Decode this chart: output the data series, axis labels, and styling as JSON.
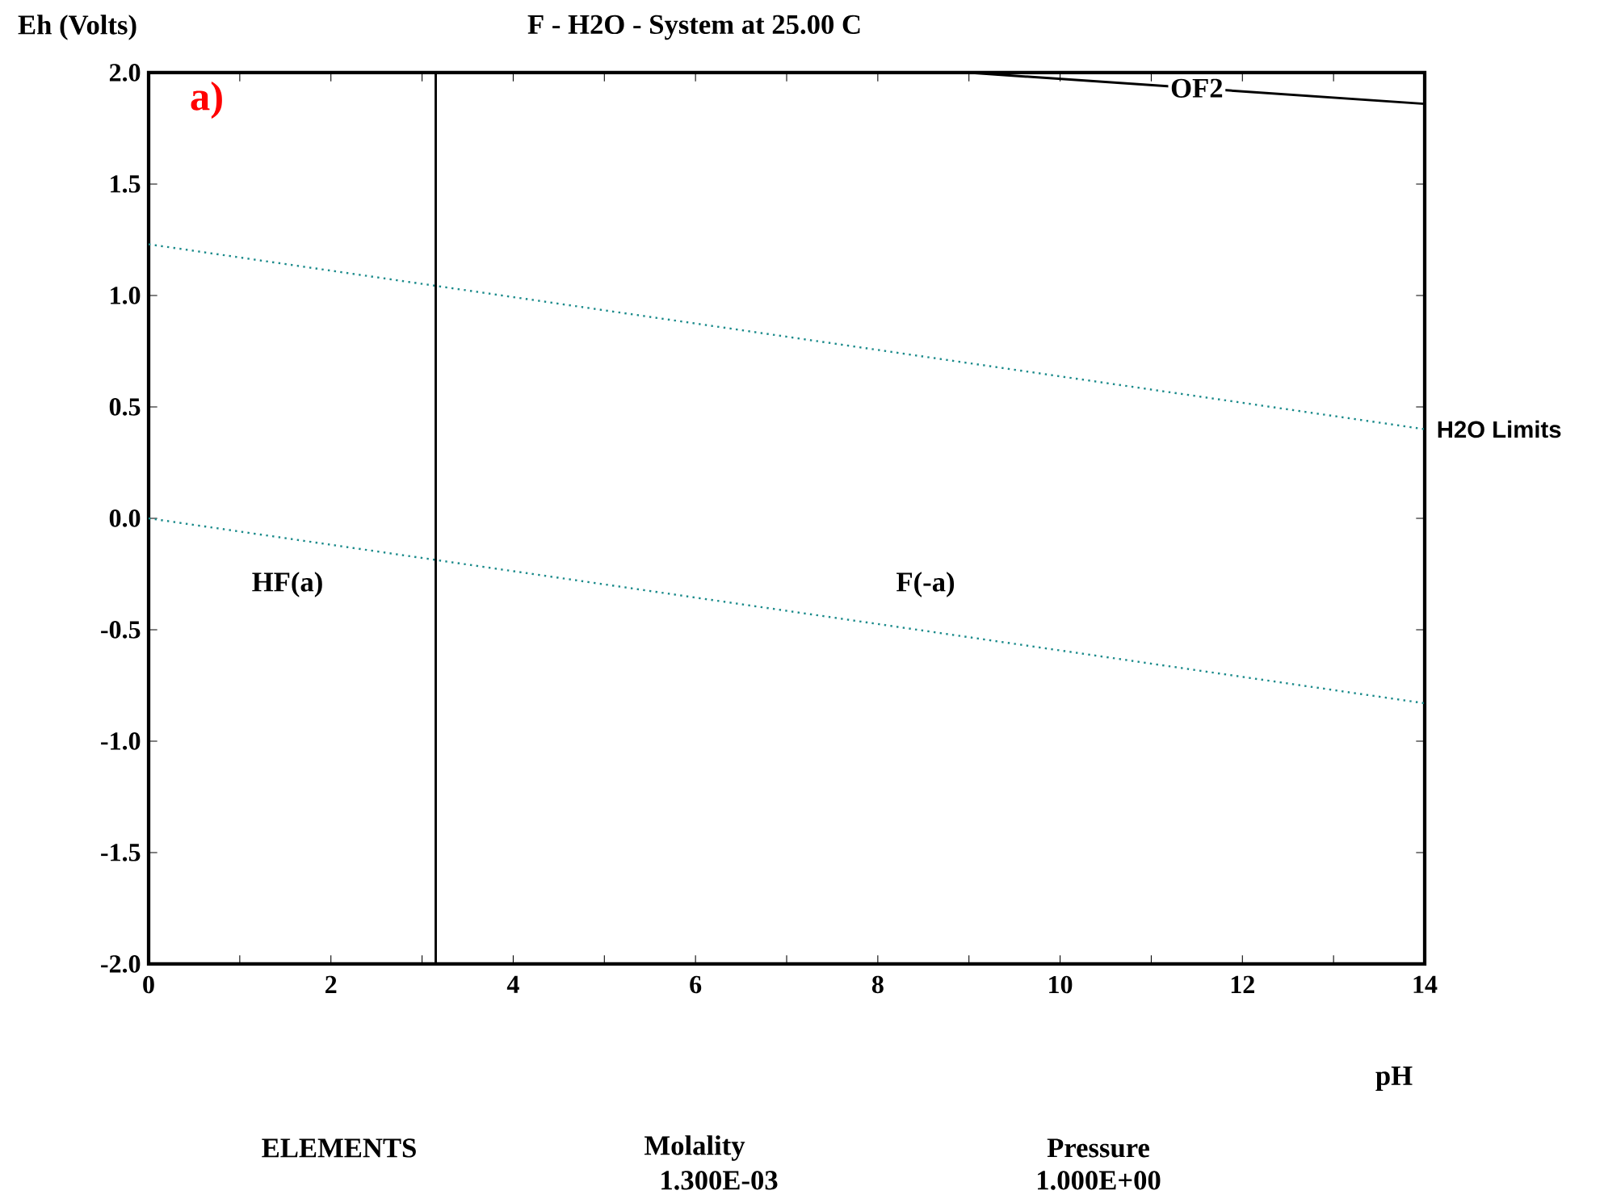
{
  "chart_data": {
    "type": "line",
    "title": "F - H2O - System at 25.00 C",
    "xlabel": "pH",
    "ylabel": "Eh (Volts)",
    "xlim": [
      0,
      14
    ],
    "ylim": [
      -2,
      2
    ],
    "xticks": [
      0,
      {
        "value": 1,
        "label": null
      },
      2,
      {
        "value": 3,
        "label": null
      },
      4,
      {
        "value": 5,
        "label": null
      },
      6,
      {
        "value": 7,
        "label": null
      },
      8,
      {
        "value": 9,
        "label": null
      },
      10,
      {
        "value": 11,
        "label": null
      },
      12,
      {
        "value": 13,
        "label": null
      },
      14
    ],
    "yticks": [
      {
        "value": -2,
        "label": "-2.0"
      },
      {
        "value": -1.5,
        "label": "-1.5"
      },
      {
        "value": -1,
        "label": "-1.0"
      },
      {
        "value": -0.5,
        "label": "-0.5"
      },
      {
        "value": 0,
        "label": "0.0"
      },
      {
        "value": 0.5,
        "label": "0.5"
      },
      {
        "value": 1,
        "label": "1.0"
      },
      {
        "value": 1.5,
        "label": "1.5"
      },
      {
        "value": 2,
        "label": "2.0"
      }
    ],
    "grid": false,
    "marker": "none",
    "series": [
      {
        "color": "#1a8a8a",
        "line_style": "dotted",
        "x": [
          0,
          14
        ],
        "values": [
          1.23,
          0.4
        ]
      },
      {
        "color": "#1a8a8a",
        "line_style": "dotted",
        "x": [
          0,
          14
        ],
        "values": [
          0,
          -0.83
        ]
      },
      {
        "color": "#000000",
        "line_style": "solid",
        "x": [
          3.15,
          3.15
        ],
        "values": [
          -2,
          2
        ]
      },
      {
        "color": "#000000",
        "line_style": "solid",
        "x": [
          9.0,
          14
        ],
        "values": [
          2,
          1.86
        ]
      }
    ],
    "annotations": [
      "a)",
      "HF(a)",
      "F(-a)",
      {
        "text": "OF2",
        "x": 11.5,
        "y": 1.93
      },
      {
        "text": "H2O Limits",
        "x": 14,
        "y": 0.4
      },
      "ELEMENTS",
      "Molality",
      "1.300E-03",
      "Pressure",
      "1.000E+00"
    ]
  }
}
